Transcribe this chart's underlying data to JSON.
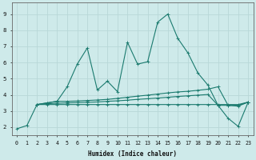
{
  "xlabel": "Humidex (Indice chaleur)",
  "xlim": [
    -0.5,
    23.5
  ],
  "ylim": [
    1.5,
    9.7
  ],
  "xticks": [
    0,
    1,
    2,
    3,
    4,
    5,
    6,
    7,
    8,
    9,
    10,
    11,
    12,
    13,
    14,
    15,
    16,
    17,
    18,
    19,
    20,
    21,
    22,
    23
  ],
  "yticks": [
    2,
    3,
    4,
    5,
    6,
    7,
    8,
    9
  ],
  "bg_color": "#ceeaea",
  "grid_color": "#b8d8d8",
  "line_color": "#1a7a6e",
  "line1_x": [
    0,
    1,
    2,
    3,
    4,
    5,
    6,
    7,
    8,
    9,
    10,
    11,
    12,
    13,
    14,
    15,
    16,
    17,
    18,
    19,
    20,
    21,
    22,
    23
  ],
  "line1_y": [
    1.9,
    2.1,
    3.4,
    3.5,
    3.6,
    4.5,
    5.9,
    6.9,
    4.3,
    4.85,
    4.2,
    7.25,
    5.9,
    6.05,
    8.5,
    9.0,
    7.5,
    6.6,
    5.35,
    4.6,
    3.35,
    2.55,
    2.05,
    3.55
  ],
  "line2_x": [
    2,
    3,
    4,
    5,
    6,
    7,
    8,
    9,
    10,
    11,
    12,
    13,
    14,
    15,
    16,
    17,
    18,
    19,
    20,
    21,
    22,
    23
  ],
  "line2_y": [
    3.4,
    3.5,
    3.6,
    3.6,
    3.62,
    3.65,
    3.68,
    3.72,
    3.78,
    3.85,
    3.92,
    3.98,
    4.05,
    4.12,
    4.18,
    4.22,
    4.28,
    4.35,
    4.5,
    3.35,
    3.3,
    3.55
  ],
  "line3_x": [
    2,
    3,
    4,
    5,
    6,
    7,
    8,
    9,
    10,
    11,
    12,
    13,
    14,
    15,
    16,
    17,
    18,
    19,
    20,
    21,
    22,
    23
  ],
  "line3_y": [
    3.4,
    3.4,
    3.4,
    3.4,
    3.4,
    3.4,
    3.4,
    3.4,
    3.4,
    3.4,
    3.4,
    3.4,
    3.4,
    3.4,
    3.4,
    3.4,
    3.4,
    3.4,
    3.4,
    3.4,
    3.4,
    3.55
  ],
  "line4_x": [
    2,
    3,
    4,
    5,
    6,
    7,
    8,
    9,
    10,
    11,
    12,
    13,
    14,
    15,
    16,
    17,
    18,
    19,
    20,
    21,
    22,
    23
  ],
  "line4_y": [
    3.4,
    3.45,
    3.48,
    3.5,
    3.52,
    3.54,
    3.56,
    3.6,
    3.63,
    3.67,
    3.72,
    3.76,
    3.8,
    3.85,
    3.9,
    3.94,
    3.98,
    4.02,
    3.35,
    3.35,
    3.35,
    3.55
  ]
}
